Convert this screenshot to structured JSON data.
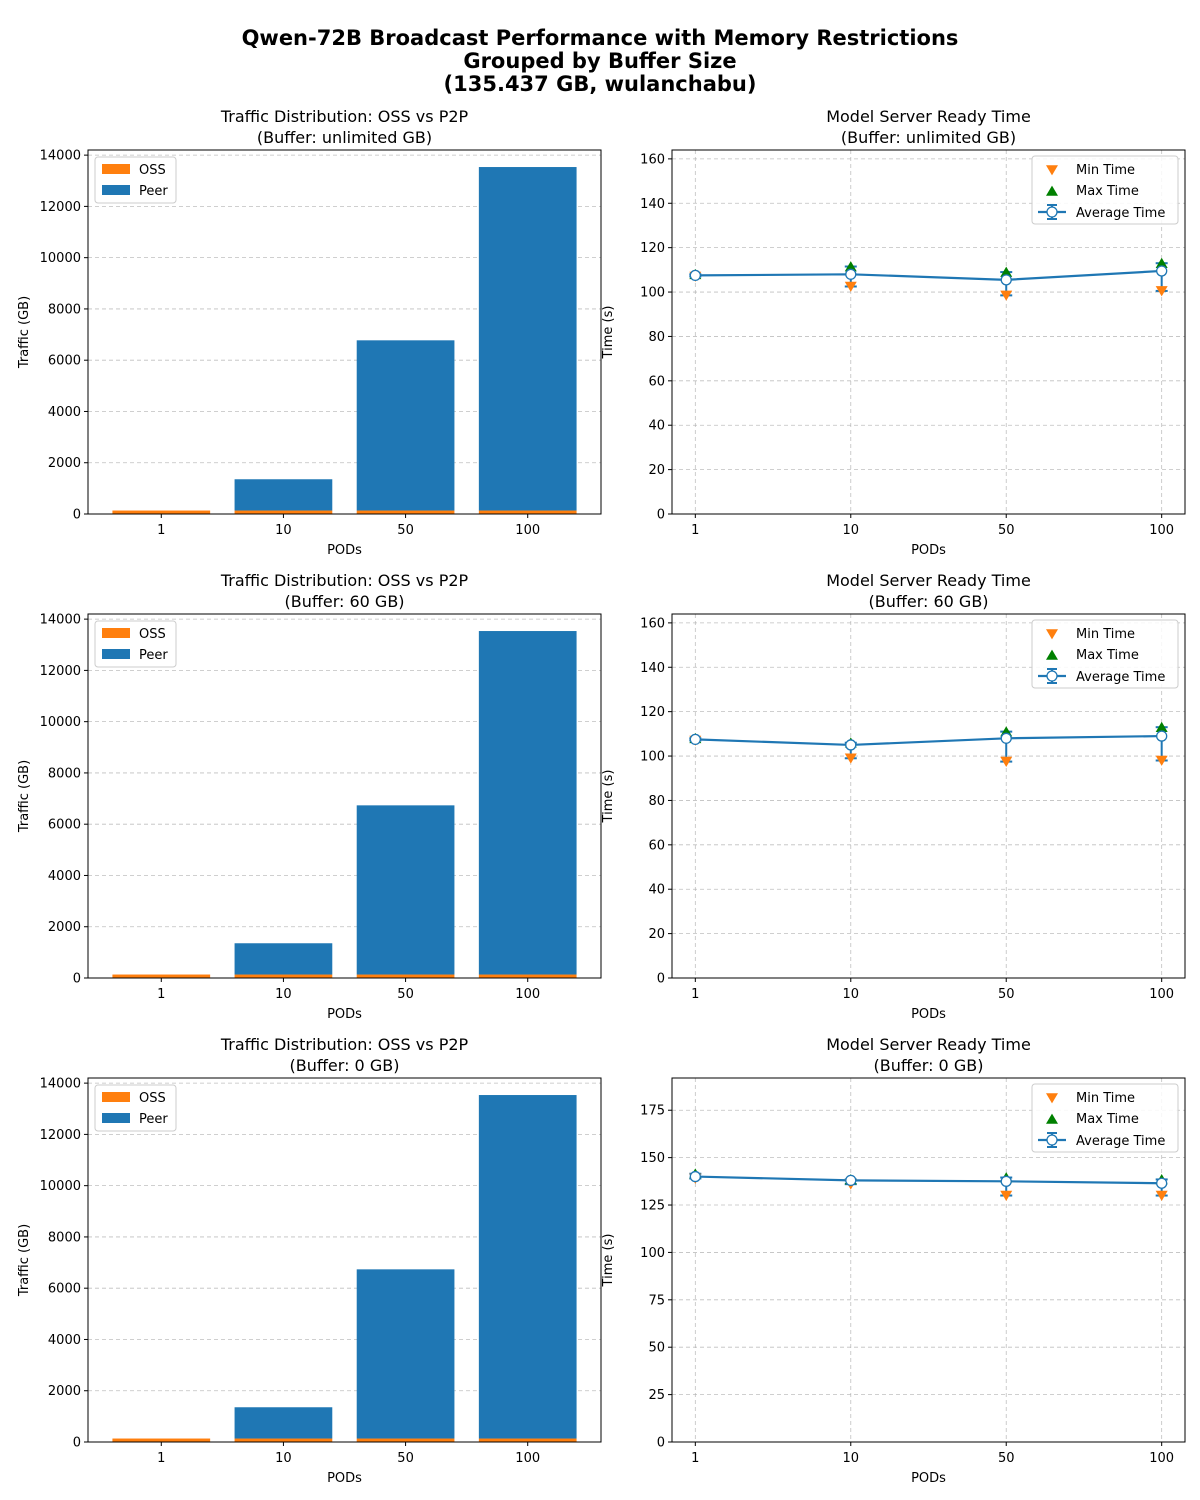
{
  "figure": {
    "title_lines": [
      "Qwen-72B Broadcast Performance with Memory Restrictions",
      "Grouped by Buffer Size",
      "(135.437 GB, wulanchabu)"
    ]
  },
  "colors": {
    "oss": "#ff7f0e",
    "peer": "#1f77b4",
    "avg_line": "#1f77b4",
    "min_marker": "#ff7f0e",
    "max_marker": "#008000",
    "grid": "#b0b0b0"
  },
  "chart_data": [
    {
      "type": "bar",
      "stacked": true,
      "title_lines": [
        "Traffic Distribution: OSS vs P2P",
        "(Buffer: unlimited GB)"
      ],
      "xlabel": "PODs",
      "ylabel": "Traffic (GB)",
      "categories": [
        "1",
        "10",
        "50",
        "100"
      ],
      "series": [
        {
          "name": "OSS",
          "values": [
            135.4,
            135.4,
            135.4,
            135.4
          ]
        },
        {
          "name": "Peer",
          "values": [
            0,
            1220,
            6640,
            13400
          ]
        }
      ],
      "ylim": [
        0,
        14200
      ],
      "yticks": [
        0,
        2000,
        4000,
        6000,
        8000,
        10000,
        12000,
        14000
      ],
      "grid": true,
      "legend": "upper-left"
    },
    {
      "type": "line",
      "title_lines": [
        "Model Server Ready Time",
        "(Buffer: unlimited GB)"
      ],
      "xlabel": "PODs",
      "ylabel": "Time (s)",
      "categories": [
        "1",
        "10",
        "50",
        "100"
      ],
      "series": [
        {
          "name": "Min Time",
          "marker": "triangle-down",
          "values": [
            107,
            102.5,
            98.5,
            100.5
          ]
        },
        {
          "name": "Max Time",
          "marker": "triangle-up",
          "values": [
            108,
            111.5,
            109,
            113
          ]
        },
        {
          "name": "Average Time",
          "marker": "circle",
          "values": [
            107.5,
            108,
            105.5,
            109.5
          ],
          "error_low": [
            107,
            102.5,
            98.5,
            100.5
          ],
          "error_high": [
            108,
            111.5,
            109,
            113
          ]
        }
      ],
      "ylim": [
        0,
        164
      ],
      "yticks": [
        0,
        20,
        40,
        60,
        80,
        100,
        120,
        140,
        160
      ],
      "grid": true,
      "legend": "upper-right"
    },
    {
      "type": "bar",
      "stacked": true,
      "title_lines": [
        "Traffic Distribution: OSS vs P2P",
        "(Buffer: 60 GB)"
      ],
      "xlabel": "PODs",
      "ylabel": "Traffic (GB)",
      "categories": [
        "1",
        "10",
        "50",
        "100"
      ],
      "series": [
        {
          "name": "OSS",
          "values": [
            135.4,
            135.4,
            135.4,
            135.4
          ]
        },
        {
          "name": "Peer",
          "values": [
            0,
            1220,
            6600,
            13400
          ]
        }
      ],
      "ylim": [
        0,
        14200
      ],
      "yticks": [
        0,
        2000,
        4000,
        6000,
        8000,
        10000,
        12000,
        14000
      ],
      "grid": true,
      "legend": "upper-left"
    },
    {
      "type": "line",
      "title_lines": [
        "Model Server Ready Time",
        "(Buffer: 60 GB)"
      ],
      "xlabel": "PODs",
      "ylabel": "Time (s)",
      "categories": [
        "1",
        "10",
        "50",
        "100"
      ],
      "series": [
        {
          "name": "Min Time",
          "marker": "triangle-down",
          "values": [
            107,
            99,
            97.5,
            98
          ]
        },
        {
          "name": "Max Time",
          "marker": "triangle-up",
          "values": [
            108,
            106,
            111,
            113
          ]
        },
        {
          "name": "Average Time",
          "marker": "circle",
          "values": [
            107.5,
            105,
            108,
            109
          ],
          "error_low": [
            107,
            99,
            97.5,
            98
          ],
          "error_high": [
            108,
            106,
            111,
            113
          ]
        }
      ],
      "ylim": [
        0,
        164
      ],
      "yticks": [
        0,
        20,
        40,
        60,
        80,
        100,
        120,
        140,
        160
      ],
      "grid": true,
      "legend": "upper-right"
    },
    {
      "type": "bar",
      "stacked": true,
      "title_lines": [
        "Traffic Distribution: OSS vs P2P",
        "(Buffer: 0 GB)"
      ],
      "xlabel": "PODs",
      "ylabel": "Traffic (GB)",
      "categories": [
        "1",
        "10",
        "50",
        "100"
      ],
      "series": [
        {
          "name": "OSS",
          "values": [
            135.4,
            135.4,
            135.4,
            135.4
          ]
        },
        {
          "name": "Peer",
          "values": [
            0,
            1220,
            6600,
            13400
          ]
        }
      ],
      "ylim": [
        0,
        14200
      ],
      "yticks": [
        0,
        2000,
        4000,
        6000,
        8000,
        10000,
        12000,
        14000
      ],
      "grid": true,
      "legend": "upper-left"
    },
    {
      "type": "line",
      "title_lines": [
        "Model Server Ready Time",
        "(Buffer: 0 GB)"
      ],
      "xlabel": "PODs",
      "ylabel": "Time (s)",
      "categories": [
        "1",
        "10",
        "50",
        "100"
      ],
      "series": [
        {
          "name": "Min Time",
          "marker": "triangle-down",
          "values": [
            139,
            136,
            130,
            130
          ]
        },
        {
          "name": "Max Time",
          "marker": "triangle-up",
          "values": [
            141.5,
            138.5,
            139.5,
            138.5
          ]
        },
        {
          "name": "Average Time",
          "marker": "circle",
          "values": [
            140,
            138,
            137.5,
            136.5
          ],
          "error_low": [
            139,
            136,
            130,
            130
          ],
          "error_high": [
            141.5,
            138.5,
            139.5,
            138.5
          ]
        }
      ],
      "ylim": [
        0,
        192
      ],
      "yticks": [
        0,
        25,
        50,
        75,
        100,
        125,
        150,
        175
      ],
      "grid": true,
      "legend": "upper-right"
    }
  ]
}
